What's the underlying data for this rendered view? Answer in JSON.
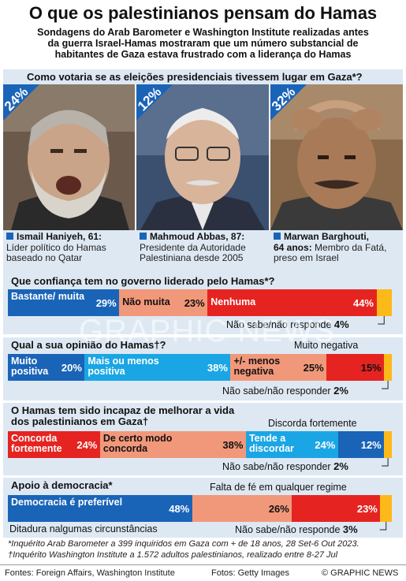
{
  "title": "O que os palestinianos pensam do Hamas",
  "subtitle": "Sondagens do Arab Barometer e Washington Institute realizadas antes da guerra Israel-Hamas mostraram que um número substancial de habitantes de Gaza estava frustrado com a liderança do Hamas",
  "subtitle_lines": [
    "Sondagens do Arab Barometer e Washington Institute realizadas antes",
    "da guerra Israel-Hamas mostraram que um número substancial de",
    "habitantes de Gaza estava frustrado com a liderança do Hamas"
  ],
  "colors": {
    "dark_blue": "#1a64b8",
    "light_blue": "#1aa6e4",
    "salmon": "#f2987a",
    "red": "#e52421",
    "yellow": "#fcb91a",
    "panel_bg": "#dde8f3"
  },
  "watermark": "GRAPHIC NEWS",
  "election": {
    "question": "Como votaria se as eleições presidenciais tivessem lugar em Gaza*?",
    "candidates": [
      {
        "pct": "24%",
        "name": "Ismail Haniyeh, 61:",
        "desc": [
          "Líder político do Hamas",
          "baseado no Qatar"
        ]
      },
      {
        "pct": "12%",
        "name": "Mahmoud Abbas, 87:",
        "desc": [
          "Presidente da Autoridade",
          "Palestiniana desde 2005"
        ]
      },
      {
        "pct": "32%",
        "name": "Marwan Barghouti,",
        "name2": "64 anos:",
        "desc": [
          "Membro da Fatá,",
          "preso em Israel"
        ]
      }
    ]
  },
  "chart_data": [
    {
      "type": "bar",
      "title": "Que confiança tem no governo liderado pelo Hamas*?",
      "segments": [
        {
          "label": "Bastante/ muita",
          "value": 29,
          "display": "29%"
        },
        {
          "label": "Não muita",
          "value": 23,
          "display": "23%"
        },
        {
          "label": "Nenhuma",
          "value": 44,
          "display": "44%"
        },
        {
          "label": "Não sabe/não responde",
          "value": 4,
          "display": "4%"
        }
      ]
    },
    {
      "type": "bar",
      "title": "Qual a sua opinião do Hamas†?",
      "segments": [
        {
          "label": "Muito positiva",
          "value": 20,
          "display": "20%"
        },
        {
          "label": "Mais ou menos positiva",
          "value": 38,
          "display": "38%"
        },
        {
          "label": "+/- menos negativa",
          "value": 25,
          "display": "25%"
        },
        {
          "label": "Muito negativa",
          "value": 15,
          "display": "15%"
        },
        {
          "label": "Não sabe/não responder",
          "value": 2,
          "display": "2%"
        }
      ]
    },
    {
      "type": "bar",
      "title": "O Hamas tem sido incapaz de melhorar a vida dos palestinianos em Gaza†",
      "segments": [
        {
          "label": "Concorda fortemente",
          "value": 24,
          "display": "24%"
        },
        {
          "label": "De certo modo concorda",
          "value": 38,
          "display": "38%"
        },
        {
          "label": "Tende a discordar",
          "value": 24,
          "display": "24%"
        },
        {
          "label": "Discorda fortemente",
          "value": 12,
          "display": "12%"
        },
        {
          "label": "Não sabe/não responder",
          "value": 2,
          "display": "2%"
        }
      ]
    },
    {
      "type": "bar",
      "title": "Apoio à democracia*",
      "segments": [
        {
          "label": "Democracia é preferível",
          "value": 48,
          "display": "48%"
        },
        {
          "label": "Ditadura nalgumas circunstâncias",
          "value": 26,
          "display": "26%"
        },
        {
          "label": "Falta de fé em qualquer regime",
          "value": 23,
          "display": "23%"
        },
        {
          "label": "Não sabe/não responde",
          "value": 3,
          "display": "3%"
        }
      ]
    }
  ],
  "footnotes": [
    "*Inquérito Arab Barometer a 399 inquiridos em Gaza com + de 18 anos, 28 Set-6 Out 2023.",
    "†Inquérito Washington Institute a 1.572 adultos palestinianos, realizado entre 8-27 Jul"
  ],
  "credits": {
    "sources": "Fontes: Foreign Affairs, Washington Institute",
    "photos": "Fotos: Getty Images",
    "brand": "© GRAPHIC NEWS"
  }
}
